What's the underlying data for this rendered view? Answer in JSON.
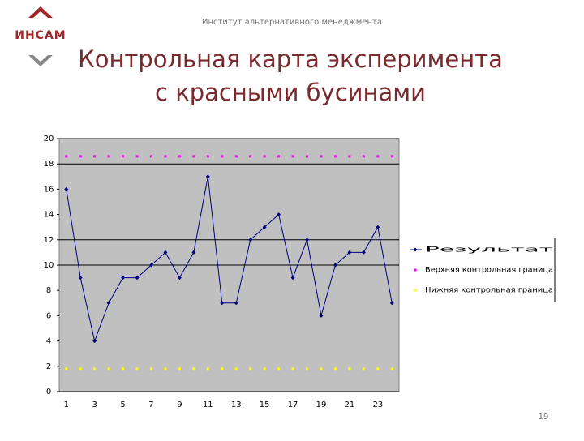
{
  "header": {
    "institute": "Институт альтернативного менеджмента",
    "logo": "ИНСАМ",
    "title_lines": [
      "Контрольная карта эксперимента",
      "с красными бусинами"
    ],
    "page_number": "19"
  },
  "chart_data": {
    "type": "line",
    "categories": [
      1,
      null,
      3,
      null,
      5,
      null,
      7,
      null,
      9,
      null,
      11,
      null,
      13,
      null,
      15,
      null,
      17,
      null,
      19,
      null,
      21,
      null,
      23,
      null
    ],
    "series": [
      {
        "name": "Результат",
        "color": "#000080",
        "marker": "diamond",
        "line": true,
        "values": [
          16,
          9,
          4,
          7,
          9,
          9,
          10,
          11,
          9,
          11,
          17,
          7,
          7,
          12,
          13,
          14,
          9,
          12,
          6,
          10,
          11,
          11,
          13,
          7
        ]
      },
      {
        "name": "Верхняя контрольная граница",
        "color": "#ff00ff",
        "marker": "square",
        "line": false,
        "values": [
          18.6,
          18.6,
          18.6,
          18.6,
          18.6,
          18.6,
          18.6,
          18.6,
          18.6,
          18.6,
          18.6,
          18.6,
          18.6,
          18.6,
          18.6,
          18.6,
          18.6,
          18.6,
          18.6,
          18.6,
          18.6,
          18.6,
          18.6,
          18.6
        ]
      },
      {
        "name": "Нижняя контрольная граница",
        "color": "#ffff00",
        "marker": "square",
        "line": false,
        "values": [
          1.8,
          1.8,
          1.8,
          1.8,
          1.8,
          1.8,
          1.8,
          1.8,
          1.8,
          1.8,
          1.8,
          1.8,
          1.8,
          1.8,
          1.8,
          1.8,
          1.8,
          1.8,
          1.8,
          1.8,
          1.8,
          1.8,
          1.8,
          1.8
        ]
      }
    ],
    "ylim": [
      0,
      20
    ],
    "yticks": [
      0,
      2,
      4,
      6,
      8,
      10,
      12,
      14,
      16,
      18,
      20
    ],
    "gridlines": [
      10,
      12,
      18,
      20
    ],
    "plot_color": "#c0c0c0",
    "legend": "right"
  }
}
